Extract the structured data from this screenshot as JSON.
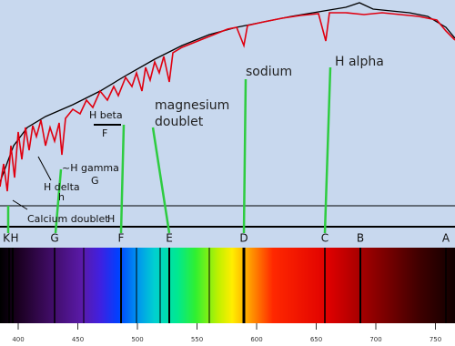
{
  "annotations": {
    "sodium": "sodium",
    "h_alpha": "H alpha",
    "magnesium_1": "magnesium",
    "magnesium_2": "doublet",
    "h_beta": "H beta",
    "f_label": "F",
    "h_gamma": "~H gamma",
    "g_label": "G",
    "h_delta": "H delta",
    "h_small": "h",
    "calcium": "Calcium doublet",
    "h_calcium": "H"
  },
  "lines": [
    "K",
    "H",
    "G",
    "F",
    "E",
    "D",
    "C",
    "B",
    "A"
  ],
  "axis": [
    "400",
    "450",
    "500",
    "550",
    "600",
    "650",
    "700",
    "750"
  ]
}
